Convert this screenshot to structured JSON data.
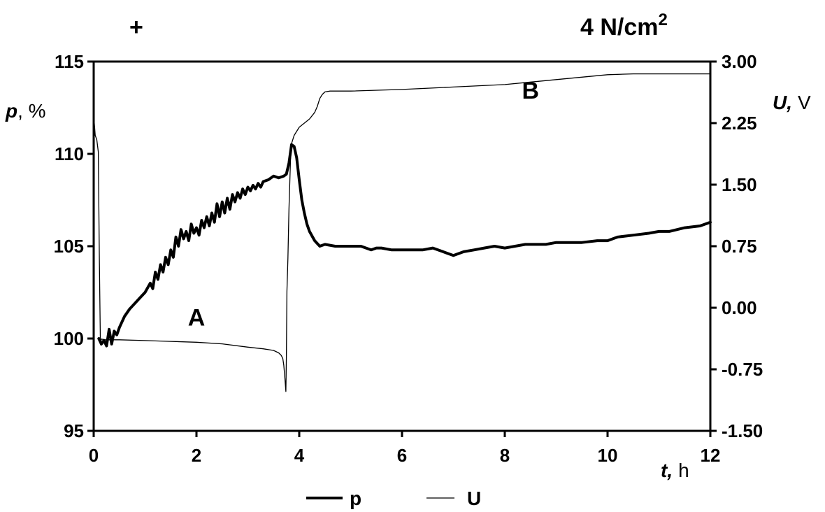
{
  "chart_data": {
    "type": "line",
    "corner_symbol": "+",
    "title": {
      "text": "4 N/cm",
      "sup": "2"
    },
    "x": {
      "label_var": "t,",
      "label_unit": "h",
      "lim": [
        0,
        12
      ],
      "ticks": [
        "0",
        "2",
        "4",
        "6",
        "8",
        "10",
        "12"
      ]
    },
    "y_left": {
      "label_var": "p",
      "label_unit": ", %",
      "lim": [
        95,
        115
      ],
      "ticks": [
        "95",
        "100",
        "105",
        "110",
        "115"
      ]
    },
    "y_right": {
      "label_var": "U,",
      "label_unit": "V",
      "lim": [
        -1.5,
        3.0
      ],
      "ticks": [
        "-1.50",
        "-0.75",
        "0.00",
        "0.75",
        "1.50",
        "2.25",
        "3.00"
      ]
    },
    "annotations": [
      {
        "text": "A",
        "x": 2.0,
        "y": 100.7,
        "axis": "left"
      },
      {
        "text": "B",
        "x": 8.5,
        "y": 2.55,
        "axis": "right"
      }
    ],
    "legend": {
      "placement": "bottom-center",
      "items": [
        {
          "name": "p",
          "style": "thick"
        },
        {
          "name": "U",
          "style": "thin"
        }
      ]
    },
    "series": [
      {
        "name": "p",
        "axis": "left",
        "x": [
          0.1,
          0.15,
          0.2,
          0.25,
          0.3,
          0.35,
          0.4,
          0.45,
          0.5,
          0.6,
          0.7,
          0.8,
          0.9,
          1.0,
          1.1,
          1.15,
          1.2,
          1.25,
          1.3,
          1.35,
          1.4,
          1.45,
          1.5,
          1.55,
          1.6,
          1.65,
          1.7,
          1.75,
          1.8,
          1.85,
          1.9,
          1.95,
          2.0,
          2.05,
          2.1,
          2.15,
          2.2,
          2.25,
          2.3,
          2.35,
          2.4,
          2.45,
          2.5,
          2.55,
          2.6,
          2.65,
          2.7,
          2.75,
          2.8,
          2.85,
          2.9,
          2.95,
          3.0,
          3.05,
          3.1,
          3.15,
          3.2,
          3.25,
          3.3,
          3.4,
          3.5,
          3.6,
          3.7,
          3.75,
          3.8,
          3.85,
          3.9,
          3.95,
          4.0,
          4.05,
          4.1,
          4.15,
          4.2,
          4.3,
          4.4,
          4.5,
          4.7,
          5.0,
          5.2,
          5.4,
          5.5,
          5.6,
          5.8,
          6.0,
          6.2,
          6.4,
          6.6,
          6.8,
          7.0,
          7.2,
          7.4,
          7.6,
          7.8,
          8.0,
          8.2,
          8.4,
          8.6,
          8.8,
          9.0,
          9.5,
          9.8,
          10.0,
          10.2,
          10.5,
          10.8,
          11.0,
          11.2,
          11.5,
          11.8,
          12.0
        ],
        "values": [
          100.0,
          99.7,
          99.9,
          99.6,
          100.5,
          99.7,
          100.4,
          100.2,
          100.6,
          101.2,
          101.6,
          101.9,
          102.2,
          102.5,
          103.0,
          102.7,
          103.6,
          103.2,
          104.0,
          103.6,
          104.4,
          104.0,
          104.8,
          104.4,
          105.5,
          105.0,
          105.9,
          105.4,
          105.8,
          105.3,
          106.2,
          105.7,
          106.0,
          105.6,
          106.4,
          106.0,
          106.6,
          106.1,
          106.8,
          106.3,
          107.3,
          106.6,
          107.4,
          106.8,
          107.6,
          107.0,
          107.8,
          107.4,
          107.9,
          107.6,
          108.1,
          107.8,
          108.2,
          108.0,
          108.3,
          108.1,
          108.4,
          108.2,
          108.5,
          108.6,
          108.8,
          108.7,
          108.8,
          108.9,
          109.5,
          110.5,
          110.4,
          109.8,
          108.6,
          107.5,
          106.8,
          106.2,
          105.8,
          105.3,
          105.0,
          105.1,
          105.0,
          105.0,
          105.0,
          104.8,
          104.9,
          104.9,
          104.8,
          104.8,
          104.8,
          104.8,
          104.9,
          104.7,
          104.5,
          104.7,
          104.8,
          104.9,
          105.0,
          104.9,
          105.0,
          105.1,
          105.1,
          105.1,
          105.2,
          105.2,
          105.3,
          105.3,
          105.5,
          105.6,
          105.7,
          105.8,
          105.8,
          106.0,
          106.1,
          106.3
        ]
      },
      {
        "name": "U",
        "axis": "right",
        "x": [
          0.0,
          0.03,
          0.06,
          0.09,
          0.11,
          0.13,
          0.15,
          0.2,
          0.3,
          0.5,
          1.0,
          1.5,
          2.0,
          2.5,
          3.0,
          3.3,
          3.5,
          3.6,
          3.65,
          3.68,
          3.7,
          3.72,
          3.74,
          3.75,
          3.76,
          3.78,
          3.8,
          3.83,
          3.85,
          3.9,
          4.0,
          4.1,
          4.2,
          4.3,
          4.35,
          4.4,
          4.45,
          4.5,
          4.6,
          5.0,
          6.0,
          7.0,
          8.0,
          9.0,
          10.0,
          10.5,
          11.0,
          12.0
        ],
        "values": [
          2.35,
          2.1,
          2.05,
          1.9,
          0.6,
          -0.45,
          -0.38,
          -0.39,
          -0.39,
          -0.39,
          -0.4,
          -0.41,
          -0.42,
          -0.44,
          -0.48,
          -0.5,
          -0.52,
          -0.55,
          -0.58,
          -0.62,
          -0.7,
          -0.85,
          -1.02,
          -0.6,
          0.2,
          0.6,
          1.2,
          1.8,
          2.0,
          2.1,
          2.2,
          2.25,
          2.3,
          2.38,
          2.45,
          2.55,
          2.6,
          2.63,
          2.64,
          2.64,
          2.66,
          2.69,
          2.72,
          2.78,
          2.84,
          2.85,
          2.85,
          2.85
        ]
      }
    ]
  }
}
